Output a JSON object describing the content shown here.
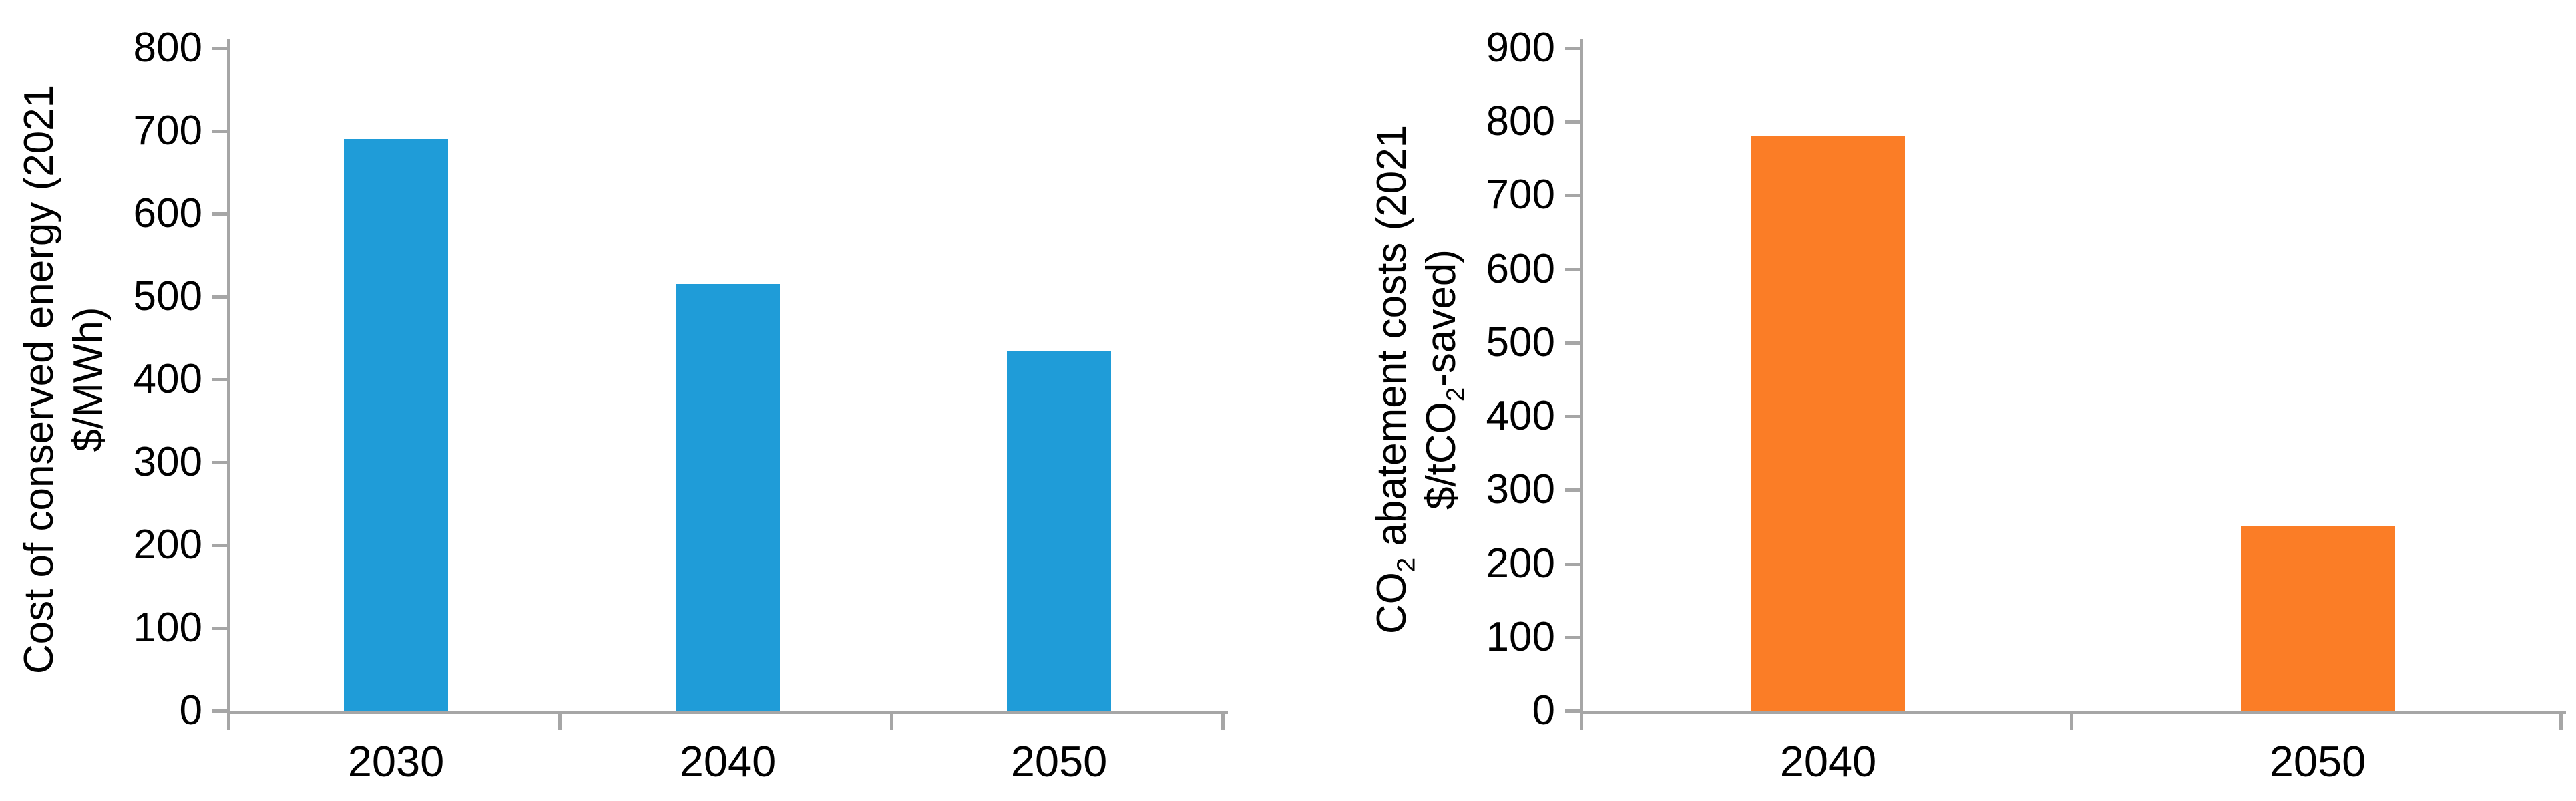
{
  "figure": {
    "background_color": "#FFFFFF",
    "text_color": "#000000",
    "axis_color": "#A6A6A6"
  },
  "chart_data": [
    {
      "type": "bar",
      "title": "",
      "ylabel_line1": "Cost of conserved energy (2021",
      "ylabel_line2": "$/MWh)",
      "ylabel": "Cost of conserved energy (2021 $/MWh)",
      "xlabel": "",
      "categories": [
        "2030",
        "2040",
        "2050"
      ],
      "values": [
        690,
        515,
        435
      ],
      "bar_color": "#1F9CD8",
      "ylim": [
        0,
        800
      ],
      "ytick_interval": 100,
      "yticks": [
        0,
        100,
        200,
        300,
        400,
        500,
        600,
        700,
        800
      ],
      "grid": false,
      "legend": "none"
    },
    {
      "type": "bar",
      "title": "",
      "ylabel_line1": "CO2 abatement costs (2021",
      "ylabel_line2": "$/tCO2-saved)",
      "ylabel": "CO2 abatement costs (2021 $/tCO2-saved)",
      "xlabel": "",
      "categories": [
        "2040",
        "2050"
      ],
      "values": [
        780,
        250
      ],
      "bar_color": "#FB7D26",
      "ylim": [
        0,
        900
      ],
      "ytick_interval": 100,
      "yticks": [
        0,
        100,
        200,
        300,
        400,
        500,
        600,
        700,
        800,
        900
      ],
      "grid": false,
      "legend": "none"
    }
  ]
}
